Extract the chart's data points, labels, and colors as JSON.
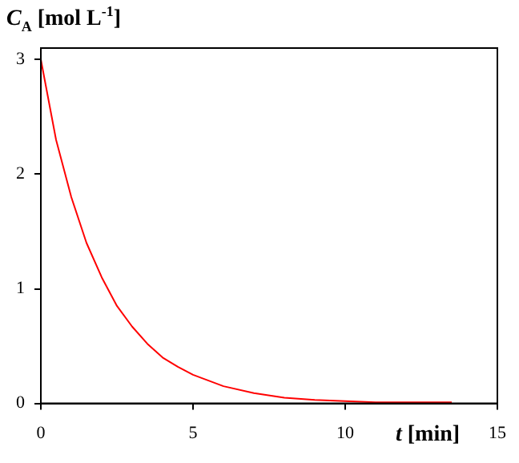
{
  "chart_data": {
    "type": "line",
    "ylabel": "C$_{A}$ [mol L$^{-1}$]",
    "xlabel": "t [min]",
    "x": [
      0,
      0.5,
      1,
      1.5,
      2,
      2.5,
      3,
      3.5,
      4,
      4.5,
      5,
      6,
      7,
      8,
      9,
      10,
      11,
      12,
      13.5
    ],
    "series": [
      {
        "color": "#ff0000",
        "values": [
          3,
          2.3,
          1.8,
          1.4,
          1.1,
          0.85,
          0.67,
          0.52,
          0.4,
          0.32,
          0.25,
          0.15,
          0.09,
          0.05,
          0.03,
          0.02,
          0.01,
          0.01,
          0.01
        ]
      }
    ],
    "xlim": [
      0,
      15
    ],
    "xticks": [
      0,
      5,
      10,
      15
    ],
    "ylim": [
      0,
      3.1
    ],
    "yticks": [
      0,
      1,
      2,
      3
    ],
    "grid": false,
    "legend": false,
    "marker": "none",
    "line_style": "solid"
  }
}
